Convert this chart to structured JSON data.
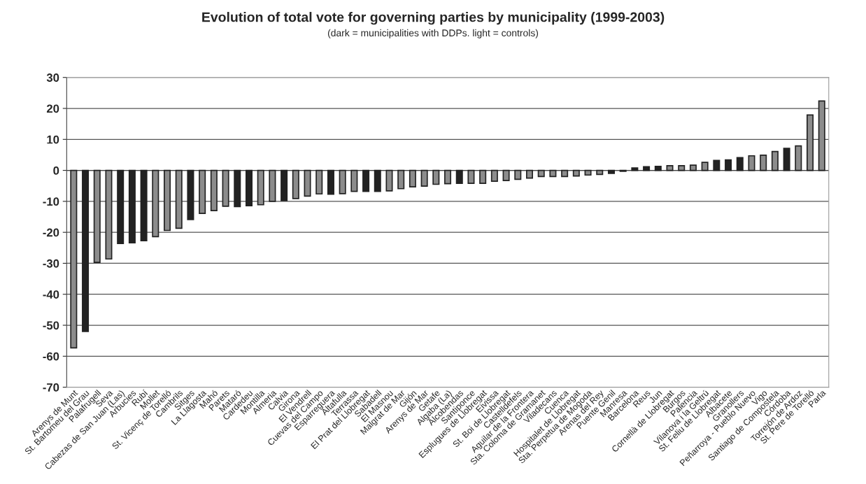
{
  "chart_data": {
    "type": "bar",
    "title": "Evolution of total vote for governing parties by municipality (1999-2003)",
    "subtitle": "(dark = municipalities with DDPs. light = controls)",
    "categories": [
      "Arenys de Munt",
      "St. Bartomeu del Grau",
      "Palafrugell",
      "Seva",
      "Cabezas de San Juan (Las)",
      "Arbucies",
      "Rubí",
      "Mollet",
      "St. Vicenç de Torelló",
      "Cambrils",
      "Sitges",
      "La Llagosta",
      "Mahó",
      "Parets",
      "Mataró",
      "Cardedeu",
      "Montilla",
      "Almeria",
      "Calvia",
      "Girona",
      "El Vendrell",
      "Cuevas del Campo",
      "Esparreguera",
      "Altafulla",
      "Terrassa",
      "El Prat del Llobregat",
      "Sabadell",
      "El Masnou",
      "Malgrat de Mar",
      "Gijón",
      "Arenys de Mar",
      "Getafe",
      "Algaba (La)",
      "Alcobendas",
      "Santiponce",
      "Esplugues de Llobregat",
      "Eivissa",
      "St. Boi de Llobregat",
      "Castelldefels",
      "Aguilar de la Frontera",
      "Sta. Coloma de Gramanet",
      "Viladecans",
      "Cuenca",
      "Hospitalet de Llobregat",
      "Sta. Perpetua de Mogoda",
      "Arenas del Rey",
      "Puente Genil",
      "Manresa",
      "Barcelona",
      "Reus",
      "Jun",
      "Cornellà de Llobregat",
      "Burgos",
      "Palencia",
      "Vilanova i la Geltrú",
      "St. Feliu de Llobregat",
      "Albacete",
      "Granollers",
      "Peñarroya - Pueblo Nuevo",
      "Vigo",
      "Santiago de Compostela",
      "Córdoba",
      "Torrejón de Ardoz",
      "St. Pere de Torelló",
      "Parla"
    ],
    "values": [
      -57.3,
      -52,
      -29.7,
      -28.6,
      -23.6,
      -23.4,
      -22.7,
      -21.4,
      -19.4,
      -18.7,
      -15.9,
      -13.9,
      -13,
      -11.6,
      -11.7,
      -11.4,
      -11.1,
      -10,
      -9.8,
      -9.1,
      -8.3,
      -7.6,
      -7.7,
      -7.5,
      -6.8,
      -6.8,
      -6.8,
      -6.6,
      -5.9,
      -5.3,
      -5.1,
      -4.5,
      -4.3,
      -4.2,
      -4.2,
      -4.2,
      -3.5,
      -3.3,
      -2.9,
      -2.5,
      -2,
      -2,
      -2,
      -1.8,
      -1.5,
      -1.3,
      -1,
      -0.3,
      0.8,
      1.2,
      1.3,
      1.5,
      1.5,
      1.7,
      2.6,
      3.2,
      3.4,
      4.1,
      4.7,
      4.9,
      6.1,
      7.1,
      7.9,
      17.9,
      22.4
    ],
    "colors": [
      "#8c8c8c",
      "#222222",
      "#8c8c8c",
      "#8c8c8c",
      "#222222",
      "#222222",
      "#222222",
      "#8c8c8c",
      "#8c8c8c",
      "#8c8c8c",
      "#222222",
      "#8c8c8c",
      "#8c8c8c",
      "#8c8c8c",
      "#222222",
      "#222222",
      "#8c8c8c",
      "#8c8c8c",
      "#222222",
      "#8c8c8c",
      "#8c8c8c",
      "#8c8c8c",
      "#222222",
      "#8c8c8c",
      "#8c8c8c",
      "#222222",
      "#222222",
      "#8c8c8c",
      "#8c8c8c",
      "#8c8c8c",
      "#8c8c8c",
      "#8c8c8c",
      "#8c8c8c",
      "#222222",
      "#8c8c8c",
      "#8c8c8c",
      "#8c8c8c",
      "#8c8c8c",
      "#8c8c8c",
      "#8c8c8c",
      "#8c8c8c",
      "#8c8c8c",
      "#8c8c8c",
      "#8c8c8c",
      "#8c8c8c",
      "#8c8c8c",
      "#222222",
      "#222222",
      "#222222",
      "#222222",
      "#222222",
      "#8c8c8c",
      "#8c8c8c",
      "#8c8c8c",
      "#8c8c8c",
      "#222222",
      "#222222",
      "#222222",
      "#8c8c8c",
      "#8c8c8c",
      "#8c8c8c",
      "#222222",
      "#8c8c8c",
      "#8c8c8c",
      "#8c8c8c"
    ],
    "ylim": [
      -70,
      30
    ],
    "yticks": [
      -70,
      -60,
      -50,
      -40,
      -30,
      -20,
      -10,
      0,
      10,
      20,
      30
    ],
    "grid": "y",
    "legend": false
  }
}
